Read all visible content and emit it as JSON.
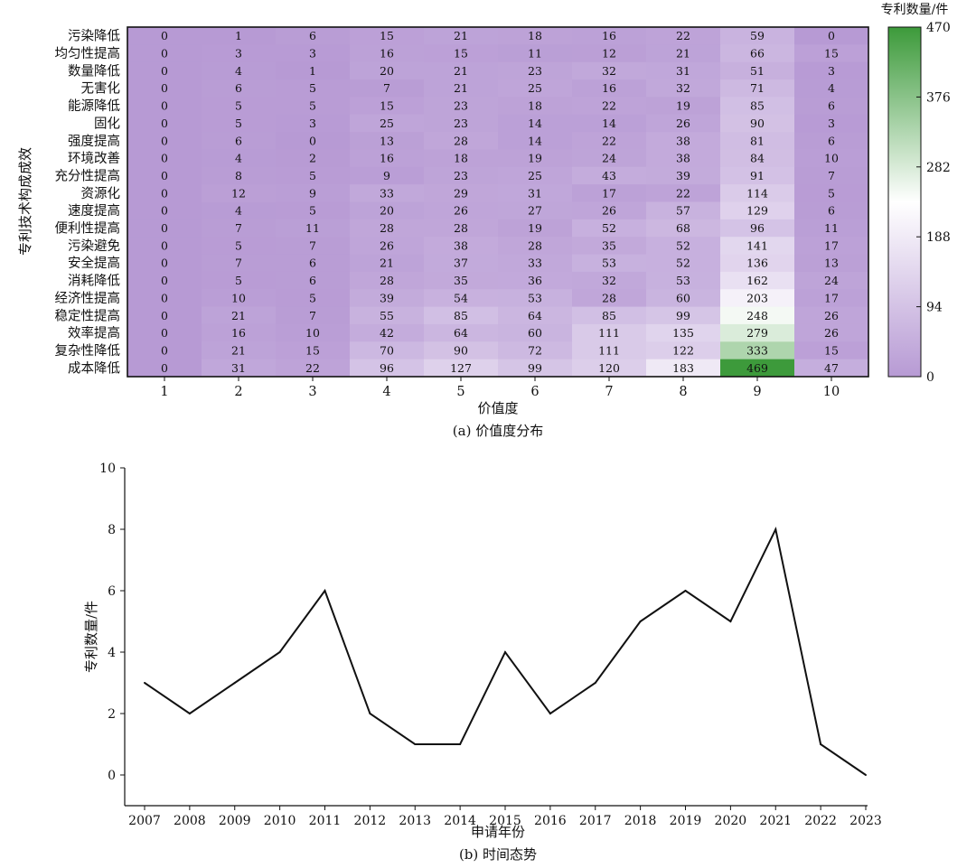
{
  "figure_a": {
    "caption": "(a) 价值度分布",
    "colorbar_title": "专利数量/件",
    "colorbar_ticks": [
      0,
      94,
      188,
      282,
      376,
      470
    ],
    "color_scale": {
      "low": "#b79ad4",
      "mid": "#ffffff",
      "high": "#3c9a3a"
    }
  },
  "figure_b": {
    "caption": "(b) 时间态势"
  },
  "chart_data": [
    {
      "type": "heatmap",
      "xlabel": "价值度",
      "ylabel": "专利技术构成成效",
      "x_categories": [
        "1",
        "2",
        "3",
        "4",
        "5",
        "6",
        "7",
        "8",
        "9",
        "10"
      ],
      "y_categories": [
        "污染降低",
        "均匀性提高",
        "数量降低",
        "无害化",
        "能源降低",
        "固化",
        "强度提高",
        "环境改善",
        "充分性提高",
        "资源化",
        "速度提高",
        "便利性提高",
        "污染避免",
        "安全提高",
        "消耗降低",
        "经济性提高",
        "稳定性提高",
        "效率提高",
        "复杂性降低",
        "成本降低"
      ],
      "values": [
        [
          0,
          1,
          6,
          15,
          21,
          18,
          16,
          22,
          59,
          0
        ],
        [
          0,
          3,
          3,
          16,
          15,
          11,
          12,
          21,
          66,
          15
        ],
        [
          0,
          4,
          1,
          20,
          21,
          23,
          32,
          31,
          51,
          3
        ],
        [
          0,
          6,
          5,
          7,
          21,
          25,
          16,
          32,
          71,
          4
        ],
        [
          0,
          5,
          5,
          15,
          23,
          18,
          22,
          19,
          85,
          6
        ],
        [
          0,
          5,
          3,
          25,
          23,
          14,
          14,
          26,
          90,
          3
        ],
        [
          0,
          6,
          0,
          13,
          28,
          14,
          22,
          38,
          81,
          6
        ],
        [
          0,
          4,
          2,
          16,
          18,
          19,
          24,
          38,
          84,
          10
        ],
        [
          0,
          8,
          5,
          9,
          23,
          25,
          43,
          39,
          91,
          7
        ],
        [
          0,
          12,
          9,
          33,
          29,
          31,
          17,
          22,
          114,
          5
        ],
        [
          0,
          4,
          5,
          20,
          26,
          27,
          26,
          57,
          129,
          6
        ],
        [
          0,
          7,
          11,
          28,
          28,
          19,
          52,
          68,
          96,
          11
        ],
        [
          0,
          5,
          7,
          26,
          38,
          28,
          35,
          52,
          141,
          17
        ],
        [
          0,
          7,
          6,
          21,
          37,
          33,
          53,
          52,
          136,
          13
        ],
        [
          0,
          5,
          6,
          28,
          35,
          36,
          32,
          53,
          162,
          24
        ],
        [
          0,
          10,
          5,
          39,
          54,
          53,
          28,
          60,
          203,
          17
        ],
        [
          0,
          21,
          7,
          55,
          85,
          64,
          85,
          99,
          248,
          26
        ],
        [
          0,
          16,
          10,
          42,
          64,
          60,
          111,
          135,
          279,
          26
        ],
        [
          0,
          21,
          15,
          70,
          90,
          72,
          111,
          122,
          333,
          15
        ],
        [
          0,
          31,
          22,
          96,
          127,
          99,
          120,
          183,
          469,
          47
        ]
      ],
      "vmin": 0,
      "vmax": 470
    },
    {
      "type": "line",
      "xlabel": "申请年份",
      "ylabel": "专利数量/件",
      "x": [
        "2007",
        "2008",
        "2009",
        "2010",
        "2011",
        "2012",
        "2013",
        "2014",
        "2015",
        "2016",
        "2017",
        "2018",
        "2019",
        "2020",
        "2021",
        "2022",
        "2023"
      ],
      "values": [
        3,
        2,
        3,
        4,
        6,
        2,
        1,
        1,
        4,
        2,
        3,
        5,
        6,
        5,
        8,
        1,
        0
      ],
      "ylim": [
        -1,
        10
      ],
      "yticks": [
        0,
        2,
        4,
        6,
        8,
        10
      ]
    }
  ]
}
